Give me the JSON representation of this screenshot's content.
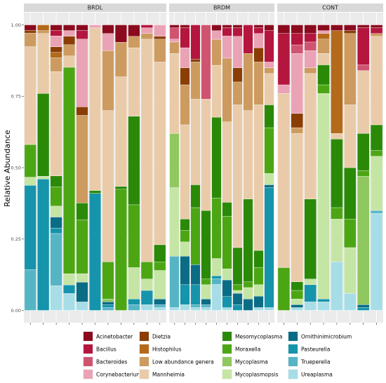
{
  "chart_data": {
    "type": "bar",
    "stacked": true,
    "ylabel": "Relative Abundance",
    "xlabel": "",
    "ylim": [
      0,
      1
    ],
    "yticks": [
      0,
      0.25,
      0.5,
      0.75,
      1
    ],
    "ytick_labels": [
      "0.00",
      "0.25",
      "0.50",
      "0.75",
      "1.00"
    ],
    "grid": true,
    "legend_position": "bottom",
    "stack_order": [
      "Ureaplasma",
      "Trueperella",
      "Pasteurella",
      "Ornithinimicrobium",
      "Mycoplasmopsis",
      "Mycoplasma",
      "Moraxella",
      "Mesomycoplasma",
      "Mannheimia",
      "Low abundance genera",
      "Histophilus",
      "Dietzia",
      "Corynebacterium",
      "Bacteroides",
      "Bacillus",
      "Acinetobacter"
    ],
    "legend": [
      {
        "name": "Acinetobacter",
        "color": "#8b0a1e"
      },
      {
        "name": "Bacillus",
        "color": "#b5163e"
      },
      {
        "name": "Bacteroides",
        "color": "#cf5470"
      },
      {
        "name": "Corynebacterium",
        "color": "#eaa3b5"
      },
      {
        "name": "Dietzia",
        "color": "#8a3e05"
      },
      {
        "name": "Histophilus",
        "color": "#b36a1a"
      },
      {
        "name": "Low abundance genera",
        "color": "#cd9b60"
      },
      {
        "name": "Mannheimia",
        "color": "#e9cba9"
      },
      {
        "name": "Mesomycoplasma",
        "color": "#2a8a08"
      },
      {
        "name": "Moraxella",
        "color": "#4ca614"
      },
      {
        "name": "Mycoplasma",
        "color": "#8fc85e"
      },
      {
        "name": "Mycoplasmopsis",
        "color": "#c5e5a5"
      },
      {
        "name": "Ornithinimicrobium",
        "color": "#0a6d85"
      },
      {
        "name": "Pasteurella",
        "color": "#1594ab"
      },
      {
        "name": "Trueperella",
        "color": "#56b5c5"
      },
      {
        "name": "Ureaplasma",
        "color": "#a7dde6"
      }
    ],
    "panels": [
      {
        "name": "BRDL",
        "samples": [
          {
            "Trueperella": 0.15,
            "Pasteurella": 0.31,
            "Mycoplasmopsis": 0.03,
            "Moraxella": 0.12,
            "Mannheimia": 0.36,
            "Low abundance genera": 0.05,
            "Dietzia": 0.01,
            "Acinetobacter": 0.02
          },
          {
            "Pasteurella": 0.46,
            "Mycoplasmopsis": 0.01,
            "Mesomycoplasma": 0.29,
            "Mannheimia": 0.21,
            "Histophilus": 0.02,
            "Low abundance genera": 0.01
          },
          {
            "Ureaplasma": 0.09,
            "Trueperella": 0.19,
            "Ornithinimicrobium": 0.04,
            "Pasteurella": 0.02,
            "Mycoplasmopsis": 0.04,
            "Moraxella": 0.07,
            "Mesomycoplasma": 0.04,
            "Mannheimia": 0.38,
            "Low abundance genera": 0.05,
            "Histophilus": 0.02,
            "Dietzia": 0.02,
            "Corynebacterium": 0.04,
            "Bacillus": 0.02,
            "Acinetobacter": 0.02
          },
          {
            "Ureaplasma": 0.06,
            "Pasteurella": 0.03,
            "Mycoplasmopsis": 0.04,
            "Moraxella": 0.73,
            "Mannheimia": 0.04,
            "Low abundance genera": 0.04,
            "Dietzia": 0.03,
            "Corynebacterium": 0.02,
            "Acinetobacter": 0.02
          },
          {
            "Ureaplasma": 0.03,
            "Ornithinimicrobium": 0.07,
            "Mycoplasmopsis": 0.03,
            "Moraxella": 0.19,
            "Mesomycoplasma": 0.06,
            "Low abundance genera": 0.31,
            "Dietzia": 0.03,
            "Corynebacterium": 0.24,
            "Bacillus": 0.03,
            "Acinetobacter": 0.02
          },
          {
            "Pasteurella": 0.41,
            "Mesomycoplasma": 0.01,
            "Mannheimia": 0.57,
            "Corynebacterium": 0.01
          },
          {
            "Ornithinimicrobium": 0.01,
            "Trueperella": 0.01,
            "Pasteurella": 0.01,
            "Mycoplasma": 0.01,
            "Moraxella": 0.13,
            "Mannheimia": 0.53,
            "Low abundance genera": 0.21,
            "Corynebacterium": 0.06,
            "Acinetobacter": 0.03
          },
          {
            "Moraxella": 0.42,
            "Mesomycoplasma": 0.01,
            "Mannheimia": 0.38,
            "Low abundance genera": 0.12,
            "Acinetobacter": 0.06
          },
          {
            "Trueperella": 0.02,
            "Pasteurella": 0.02,
            "Mycoplasmopsis": 0.11,
            "Moraxella": 0.22,
            "Mesomycoplasma": 0.31,
            "Mannheimia": 0.24,
            "Low abundance genera": 0.04,
            "Acinetobacter": 0.04
          },
          {
            "Ureaplasma": 0.02,
            "Pasteurella": 0.05,
            "Mycoplasmopsis": 0.04,
            "Moraxella": 0.06,
            "Mannheimia": 0.78,
            "Low abundance genera": 0.02,
            "Corynebacterium": 0.02,
            "Bacillus": 0.01
          },
          {
            "Ureaplasma": 0.01,
            "Ornithinimicrobium": 0.02,
            "Trueperella": 0.01,
            "Mycoplasmopsis": 0.1,
            "Moraxella": 0.03,
            "Mesomycoplasma": 0.06,
            "Mannheimia": 0.64,
            "Low abundance genera": 0.08,
            "Dietzia": 0.01,
            "Corynebacterium": 0.04
          }
        ]
      },
      {
        "name": "BRDM",
        "samples": [
          {
            "Ureaplasma": 0.01,
            "Trueperella": 0.18,
            "Mycoplasmopsis": 0.24,
            "Mycoplasma": 0.19,
            "Mannheimia": 0.28,
            "Low abundance genera": 0.04,
            "Corynebacterium": 0.01,
            "Bacteroides": 0.04,
            "Acinetobacter": 0.01
          },
          {
            "Ureaplasma": 0.02,
            "Ornithinimicrobium": 0.1,
            "Pasteurella": 0.07,
            "Mycoplasmopsis": 0.05,
            "Moraxella": 0.04,
            "Mesomycoplasma": 0.04,
            "Mannheimia": 0.33,
            "Low abundance genera": 0.14,
            "Dietzia": 0.06,
            "Corynebacterium": 0.07,
            "Bacillus": 0.07,
            "Acinetobacter": 0.01
          },
          {
            "Ureaplasma": 0.01,
            "Trueperella": 0.01,
            "Ornithinimicrobium": 0.07,
            "Pasteurella": 0.07,
            "Moraxella": 0.2,
            "Mesomycoplasma": 0.08,
            "Mannheimia": 0.3,
            "Low abundance genera": 0.13,
            "Dietzia": 0.01,
            "Bacillus": 0.12
          },
          {
            "Ureaplasma": 0.01,
            "Trueperella": 0.01,
            "Ornithinimicrobium": 0.02,
            "Mycoplasmopsis": 0.05,
            "Moraxella": 0.02,
            "Mesomycoplasma": 0.24,
            "Mannheimia": 0.39,
            "Bacteroides": 0.26
          },
          {
            "Ureaplasma": 0.09,
            "Trueperella": 0.02,
            "Pasteurella": 0.01,
            "Mycoplasmopsis": 0.06,
            "Moraxella": 0.21,
            "Mesomycoplasma": 0.28,
            "Mannheimia": 0.18,
            "Low abundance genera": 0.09,
            "Corynebacterium": 0.03,
            "Acinetobacter": 0.02
          },
          {
            "Ureaplasma": 0.01,
            "Ornithinimicrobium": 0.06,
            "Pasteurella": 0.04,
            "Mycoplasmopsis": 0.04,
            "Moraxella": 0.19,
            "Mesomycoplasma": 0.05,
            "Mannheimia": 0.29,
            "Low abundance genera": 0.23,
            "Corynebacterium": 0.08,
            "Bacillus": 0.03,
            "Acinetobacter": 0.01
          },
          {
            "Ornithinimicrobium": 0.04,
            "Pasteurella": 0.02,
            "Mycoplasmopsis": 0.01,
            "Moraxella": 0.02,
            "Mesomycoplasma": 0.13,
            "Mannheimia": 0.5,
            "Low abundance genera": 0.08,
            "Dietzia": 0.05,
            "Corynebacterium": 0.11,
            "Bacillus": 0.03,
            "Acinetobacter": 0.01
          },
          {
            "Ornithinimicrobium": 0.04,
            "Mycoplasmopsis": 0.04,
            "Moraxella": 0.02,
            "Mesomycoplasma": 0.29,
            "Mannheimia": 0.31,
            "Low abundance genera": 0.2,
            "Bacillus": 0.1
          },
          {
            "Ureaplasma": 0.01,
            "Ornithinimicrobium": 0.04,
            "Mycoplasmopsis": 0.04,
            "Moraxella": 0.06,
            "Mesomycoplasma": 0.06,
            "Mannheimia": 0.51,
            "Low abundance genera": 0.15,
            "Dietzia": 0.05,
            "Corynebacterium": 0.05,
            "Bacillus": 0.02,
            "Acinetobacter": 0.01
          },
          {
            "Ureaplasma": 0.01,
            "Ornithinimicrobium": 0.01,
            "Pasteurella": 0.42,
            "Mycoplasmopsis": 0.04,
            "Moraxella": 0.16,
            "Mesomycoplasma": 0.08,
            "Mannheimia": 0.11,
            "Low abundance genera": 0.02,
            "Corynebacterium": 0.02,
            "Bacillus": 0.11,
            "Acinetobacter": 0.02
          }
        ]
      },
      {
        "name": "CONT",
        "samples": [
          {
            "Moraxella": 0.15,
            "Mannheimia": 0.61,
            "Corynebacterium": 0.03,
            "Bacillus": 0.18,
            "Acinetobacter": 0.03
          },
          {
            "Ureaplasma": 0.01,
            "Ornithinimicrobium": 0.01,
            "Mycoplasmopsis": 0.02,
            "Moraxella": 0.03,
            "Mesomycoplasma": 0.03,
            "Mannheimia": 0.52,
            "Low abundance genera": 0.02,
            "Dietzia": 0.05,
            "Corynebacterium": 0.21,
            "Bacillus": 0.04,
            "Bacteroides": 0.03,
            "Acinetobacter": 0.03
          },
          {
            "Ureaplasma": 0.03,
            "Pasteurella": 0.06,
            "Mycoplasmopsis": 0.02,
            "Mesomycoplasma": 0.28,
            "Mannheimia": 0.44,
            "Low abundance genera": 0.02,
            "Corynebacterium": 0.06,
            "Bacteroides": 0.03,
            "Bacillus": 0.03,
            "Acinetobacter": 0.03
          },
          {
            "Ureaplasma": 0.03,
            "Pasteurella": 0.01,
            "Mycoplasmopsis": 0.72,
            "Moraxella": 0.03,
            "Mesomycoplasma": 0.07,
            "Mannheimia": 0.04,
            "Low abundance genera": 0.05,
            "Histophilus": 0.02,
            "Corynebacterium": 0.01,
            "Acinetobacter": 0.02
          },
          {
            "Ureaplasma": 0.17,
            "Mycoplasmopsis": 0.15,
            "Moraxella": 0.04,
            "Mesomycoplasma": 0.24,
            "Mannheimia": 0.02,
            "Histophilus": 0.36,
            "Acinetobacter": 0.02
          },
          {
            "Ureaplasma": 0.06,
            "Mycoplasmopsis": 0.16,
            "Moraxella": 0.1,
            "Mesomycoplasma": 0.18,
            "Mannheimia": 0.22,
            "Low abundance genera": 0.25,
            "Dietzia": 0.01,
            "Acinetobacter": 0.02
          },
          {
            "Ornithinimicrobium": 0.01,
            "Pasteurella": 0.01,
            "Mycoplasma": 0.45,
            "Moraxella": 0.02,
            "Mesomycoplasma": 0.13,
            "Mannheimia": 0.22,
            "Bacteroides": 0.02,
            "Bacillus": 0.13,
            "Acinetobacter": 0.01
          },
          {
            "Ureaplasma": 0.34,
            "Trueperella": 0.01,
            "Mycoplasmopsis": 0.19,
            "Moraxella": 0.02,
            "Mesomycoplasma": 0.09,
            "Mannheimia": 0.31,
            "Low abundance genera": 0.01,
            "Bacillus": 0.02,
            "Acinetobacter": 0.01
          }
        ]
      }
    ]
  }
}
